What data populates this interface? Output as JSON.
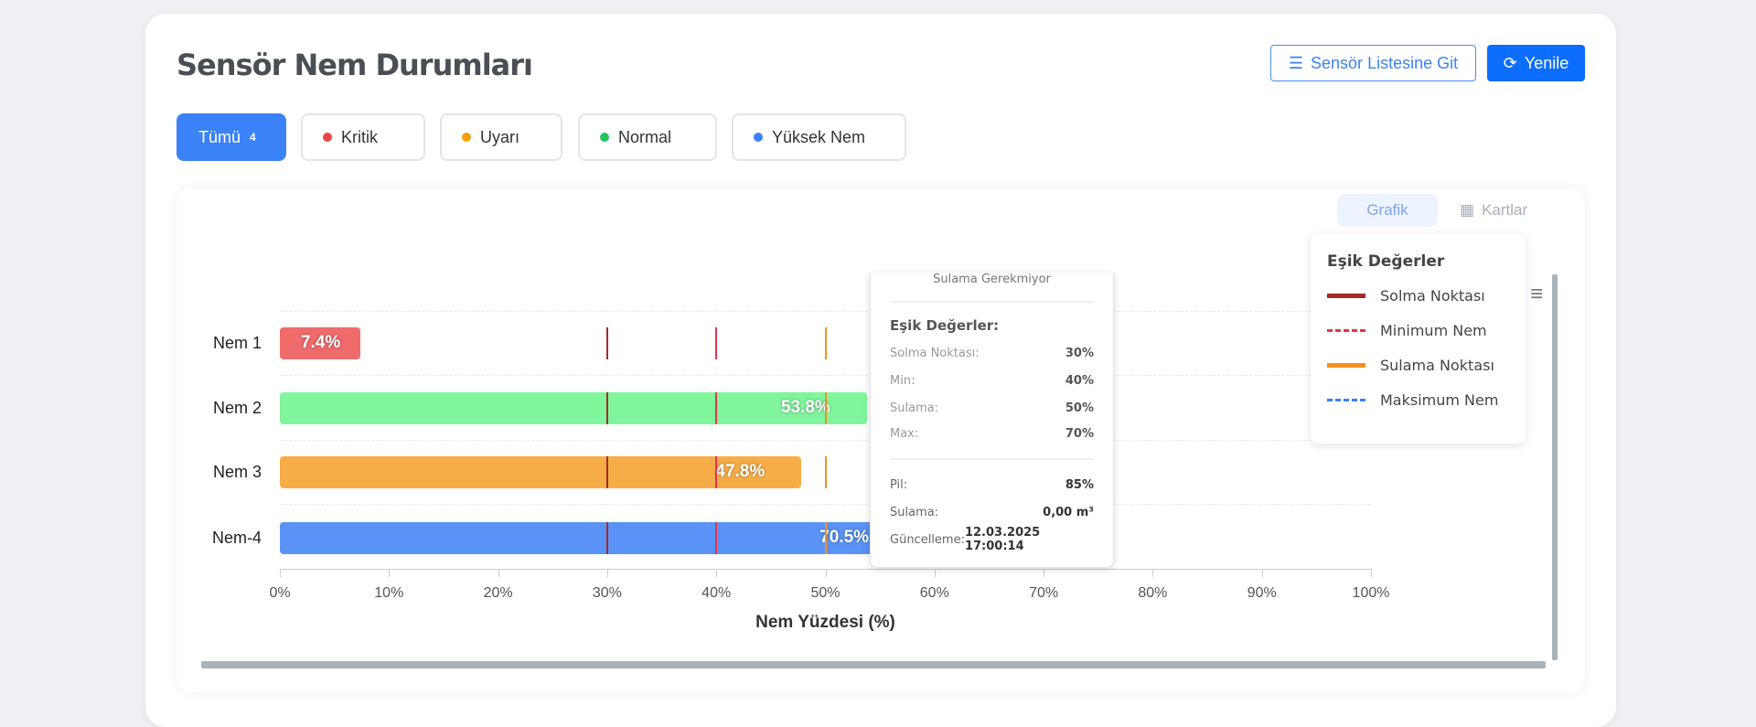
{
  "header": {
    "title": "Sensör Nem Durumları",
    "list_button": "Sensör Listesine Git",
    "refresh_button": "Yenile"
  },
  "filters": [
    {
      "label": "Tümü",
      "count": "4"
    },
    {
      "label": "Kritik",
      "color": "#ef4444"
    },
    {
      "label": "Uyarı",
      "color": "#f59e0b"
    },
    {
      "label": "Normal",
      "color": "#22c55e"
    },
    {
      "label": "Yüksek Nem",
      "color": "#3b82f6"
    }
  ],
  "view_toggle": {
    "chart": "Grafik",
    "cards": "Kartlar"
  },
  "chart_data": {
    "type": "bar",
    "orientation": "horizontal",
    "categories": [
      "Nem 1",
      "Nem 2",
      "Nem 3",
      "Nem-4"
    ],
    "values": [
      7.4,
      53.8,
      47.8,
      70.5
    ],
    "value_labels": [
      "7.4%",
      "53.8%",
      "47.8%",
      "70.5%"
    ],
    "bar_colors": [
      "#f06b6b",
      "#80f59c",
      "#f6ad47",
      "#5a93f5"
    ],
    "xlabel": "Nem Yüzdesi (%)",
    "xlim": [
      0,
      100
    ],
    "xticks": [
      "0%",
      "10%",
      "20%",
      "30%",
      "40%",
      "50%",
      "60%",
      "70%",
      "80%",
      "90%",
      "100%"
    ],
    "grid": true,
    "thresholds": [
      {
        "name": "Solma Noktası",
        "value": 30,
        "color": "#a52a2a",
        "style": "solid"
      },
      {
        "name": "Minimum Nem",
        "value": 40,
        "color": "#e8324f",
        "style": "dashed"
      },
      {
        "name": "Sulama Noktası",
        "value": 50,
        "color": "#f5901e",
        "style": "solid"
      },
      {
        "name": "Maksimum Nem",
        "value": 70,
        "color": "#3b82f6",
        "style": "dashed"
      }
    ]
  },
  "legend": {
    "title": "Eşik Değerler"
  },
  "tooltip": {
    "status": "Sulama Gerekmiyor",
    "section_title": "Eşik Değerler:",
    "rows": [
      {
        "k": "Solma Noktası:",
        "v": "30%"
      },
      {
        "k": "Min:",
        "v": "40%"
      },
      {
        "k": "Sulama:",
        "v": "50%"
      },
      {
        "k": "Max:",
        "v": "70%"
      }
    ],
    "pil_k": "Pil:",
    "pil_v": "85%",
    "sulama_k": "Sulama:",
    "sulama_v": "0,00 m³",
    "updated_k": "Güncelleme:",
    "updated_v": "12.03.2025 17:00:14"
  }
}
